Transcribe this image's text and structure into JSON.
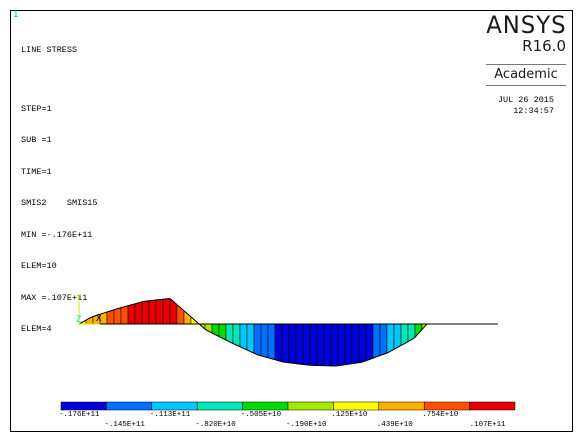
{
  "window_number": "1",
  "info": {
    "title": "LINE STRESS",
    "lines": [
      "STEP=1",
      "SUB =1",
      "TIME=1",
      "SMIS2    SMIS15",
      "MIN =-.176E+11",
      "ELEM=10",
      "MAX =.107E+11",
      "ELEM=4"
    ]
  },
  "brand": {
    "name": "ANSYS",
    "version": "R16.0",
    "edition": "Academic"
  },
  "date": "JUL 26 2015",
  "time": "12:34:57",
  "triad": {
    "y_label": "Y",
    "z_label": "Z",
    "x_label": "X"
  },
  "colors": {
    "axis_x": "#e0e000",
    "axis_y": "#e0e000",
    "axis_z": "#00e0e0",
    "window_number": "#00c8c8"
  },
  "chart_data": {
    "type": "line",
    "title": "LINE STRESS",
    "min_value": -17600000000,
    "max_value": 10700000000,
    "legend": {
      "colors": [
        "#0000d8",
        "#0070ff",
        "#00c8ff",
        "#00e8b8",
        "#00dc00",
        "#a8e800",
        "#ffff00",
        "#ffb000",
        "#ff5000",
        "#e80000"
      ],
      "labels_top": [
        ".176E+11",
        ".113E+11",
        ".505E+10",
        ".125E+10",
        ".754E+10"
      ],
      "labels_bottom": [
        ".145E+11",
        ".820E+10",
        ".190E+10",
        ".439E+10",
        ".107E+11"
      ],
      "labels_top_signs": [
        "-",
        "-",
        "-",
        "",
        ""
      ],
      "labels_bottom_signs": [
        "-",
        "-",
        "-",
        "",
        ""
      ]
    },
    "segments": [
      {
        "elem": 1,
        "value": 3000000000
      },
      {
        "elem": 2,
        "value": 6500000000
      },
      {
        "elem": 3,
        "value": 9500000000
      },
      {
        "elem": 4,
        "value": 10700000000
      },
      {
        "elem": 5,
        "value": -2500000000
      },
      {
        "elem": 6,
        "value": -8000000000
      },
      {
        "elem": 7,
        "value": -13000000000
      },
      {
        "elem": 8,
        "value": -16000000000
      },
      {
        "elem": 9,
        "value": -17300000000
      },
      {
        "elem": 10,
        "value": -17600000000
      },
      {
        "elem": 11,
        "value": -16000000000
      },
      {
        "elem": 12,
        "value": -12000000000
      },
      {
        "elem": 13,
        "value": -6000000000
      }
    ]
  }
}
